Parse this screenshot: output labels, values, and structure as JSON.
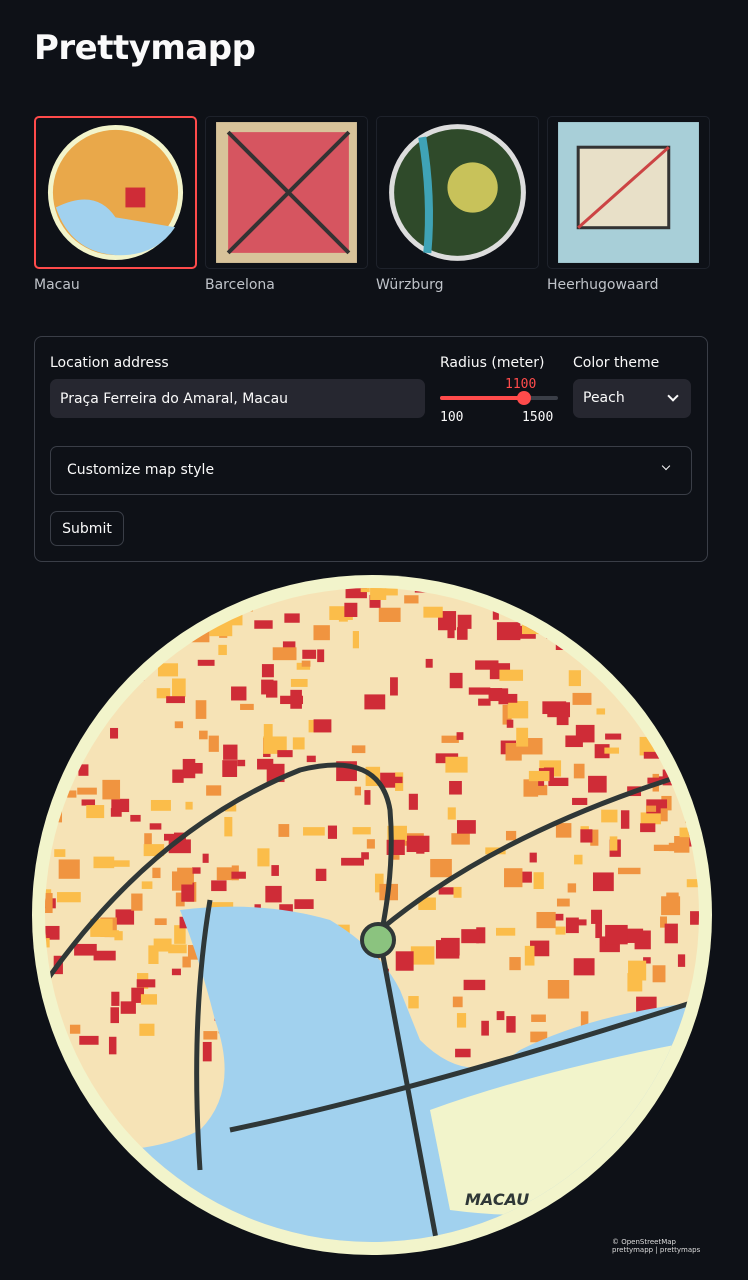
{
  "title": "Prettymapp",
  "examples": [
    {
      "label": "Macau",
      "selected": true
    },
    {
      "label": "Barcelona",
      "selected": false
    },
    {
      "label": "Würzburg",
      "selected": false
    },
    {
      "label": "Heerhugowaard",
      "selected": false
    }
  ],
  "form": {
    "address_label": "Location address",
    "address_value": "Praça Ferreira do Amaral, Macau",
    "radius_label": "Radius (meter)",
    "radius_value": "1100",
    "radius_min": "100",
    "radius_max": "1500",
    "radius_fraction": 0.714,
    "theme_label": "Color theme",
    "theme_value": "Peach",
    "customize_label": "Customize map style",
    "submit_label": "Submit"
  },
  "map": {
    "credit_line1": "© OpenStreetMap",
    "credit_line2": "prettymapp | prettymaps",
    "map_label": "MACAU",
    "colors": {
      "water": "#a1d1ee",
      "border": "#f2f4cb",
      "background": "#f6e3b6",
      "building1": "#cf2c37",
      "building2": "#f09440",
      "building3": "#fbbd4a",
      "street": "#2f3737",
      "green": "#8bc37f",
      "accent": "#ff4b4b"
    }
  }
}
